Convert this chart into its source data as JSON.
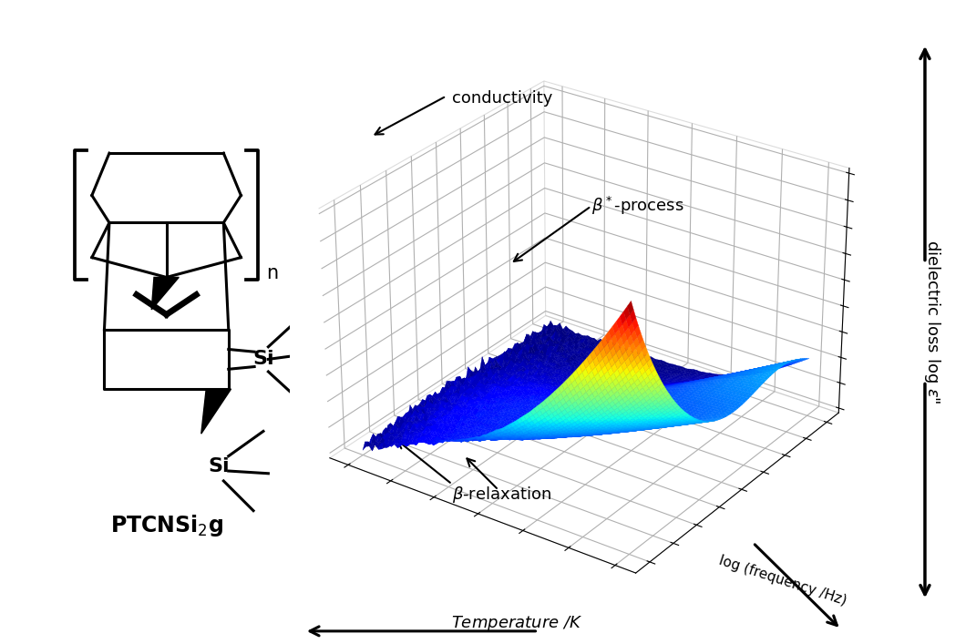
{
  "bg_color": "#ffffff",
  "annotation_conductivity": "conductivity",
  "annotation_beta_star": "β*-process",
  "annotation_beta_relax": "β-relaxation",
  "xlabel_label": "Temperature /K",
  "ylabel_label": "log (frequency /Hz)",
  "zlabel_label": "dielectric loss log ε\"",
  "n_T": 80,
  "n_f": 80,
  "view_elev": 28,
  "view_azim": -55
}
